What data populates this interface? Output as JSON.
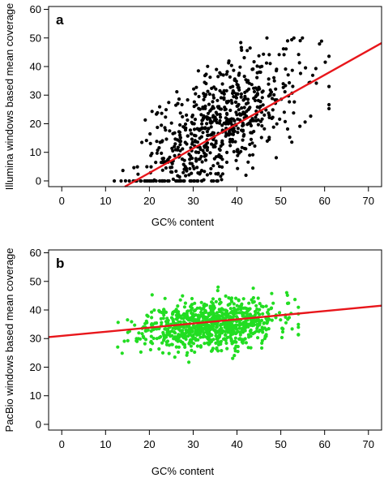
{
  "chart_data": [
    {
      "type": "scatter",
      "panel_label": "a",
      "xlabel": "GC% content",
      "ylabel": "Illumina windows based mean coverage",
      "xlim": [
        -3,
        73
      ],
      "ylim": [
        -2,
        61
      ],
      "xticks": [
        0,
        10,
        20,
        30,
        40,
        50,
        60,
        70
      ],
      "yticks": [
        0,
        10,
        20,
        30,
        40,
        50,
        60
      ],
      "point_color": "#000000",
      "fit_color": "#e8161b",
      "fit_line": {
        "x": [
          14.4,
          73
        ],
        "y": [
          -2,
          48.2
        ]
      },
      "cluster": {
        "n": 700,
        "x_mean": 36,
        "x_sd": 9,
        "y_slope": 0.86,
        "y_intercept": -12,
        "y_sd": 10,
        "y_min": 0,
        "y_max": 50,
        "x_min": 12,
        "x_max": 61,
        "seed": 7
      }
    },
    {
      "type": "scatter",
      "panel_label": "b",
      "xlabel": "GC% content",
      "ylabel": "PacBio windows based mean coverage",
      "xlim": [
        -3,
        73
      ],
      "ylim": [
        -2,
        61
      ],
      "xticks": [
        0,
        10,
        20,
        30,
        40,
        50,
        60,
        70
      ],
      "yticks": [
        0,
        10,
        20,
        30,
        40,
        50,
        60
      ],
      "point_color": "#22dd22",
      "fit_color": "#e8161b",
      "fit_line": {
        "x": [
          -3,
          73
        ],
        "y": [
          30.5,
          41.5
        ]
      },
      "cluster": {
        "n": 900,
        "x_mean": 34,
        "x_sd": 7.5,
        "y_slope": 0.15,
        "y_intercept": 30,
        "y_sd": 4.2,
        "y_min": 20,
        "y_max": 48,
        "x_min": 12,
        "x_max": 54,
        "seed": 11
      }
    }
  ]
}
